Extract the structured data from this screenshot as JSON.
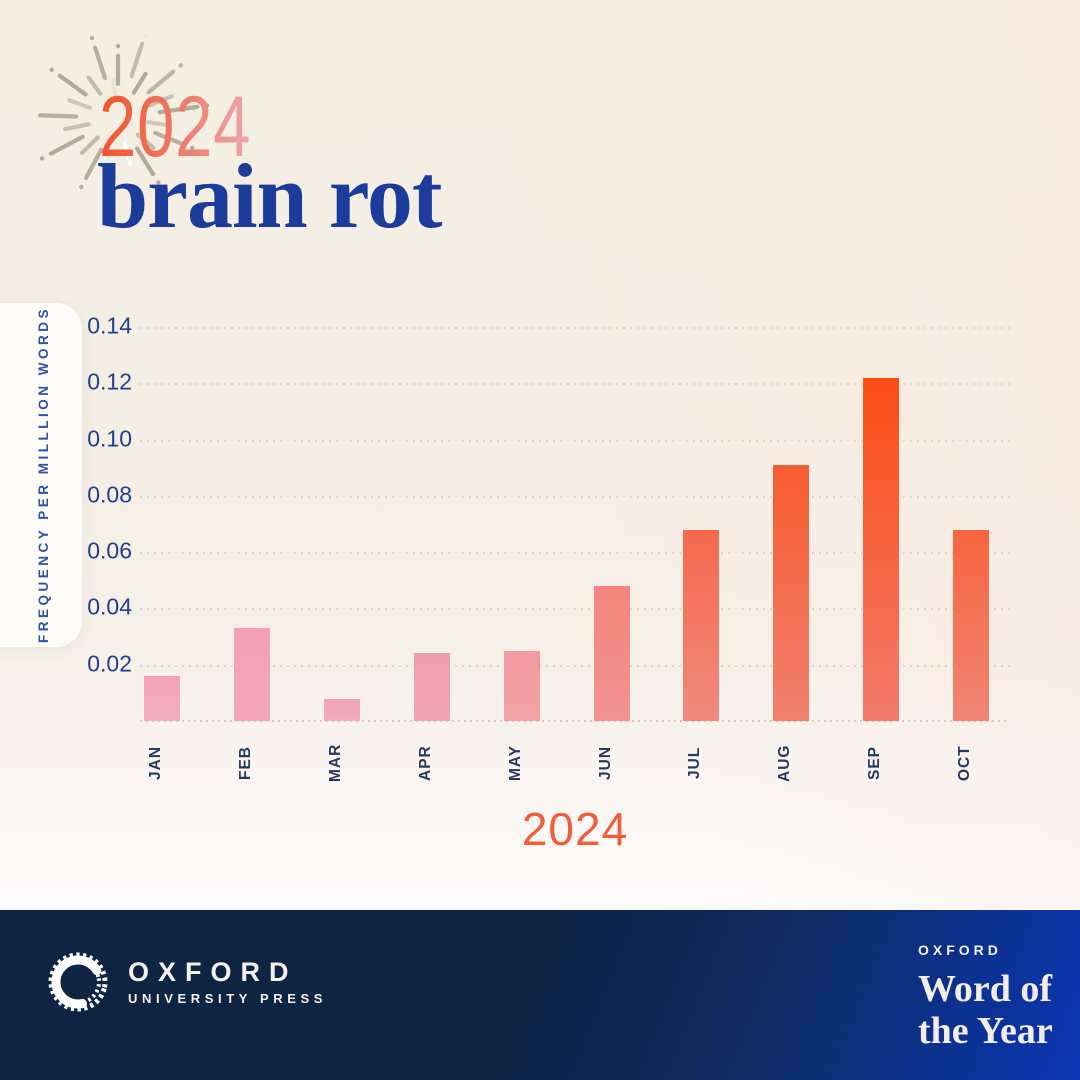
{
  "header": {
    "year": "2024",
    "word": "brain rot",
    "firework_icon": "starburst-icon"
  },
  "y_axis": {
    "label": "FREQUENCY PER MILLLION WORDS",
    "ticks": [
      "0.14",
      "0.12",
      "0.10",
      "0.08",
      "0.06",
      "0.04",
      "0.02"
    ]
  },
  "x_axis": {
    "title": "2024"
  },
  "chart_data": {
    "type": "bar",
    "title": "brain rot — usage frequency during 2024",
    "xlabel": "2024",
    "ylabel": "FREQUENCY PER MILLLION WORDS",
    "categories": [
      "JAN",
      "FEB",
      "MAR",
      "APR",
      "MAY",
      "JUN",
      "JUL",
      "AUG",
      "SEP",
      "OCT"
    ],
    "values": [
      0.016,
      0.033,
      0.008,
      0.024,
      0.025,
      0.048,
      0.068,
      0.091,
      0.122,
      0.068
    ],
    "ylim": [
      0,
      0.14
    ],
    "ytick_step": 0.02,
    "grid": "dotted-horizontal",
    "legend": "none",
    "bar_colors": [
      {
        "top": "#f3a4b9",
        "bottom": "#f3acbe"
      },
      {
        "top": "#f49fb3",
        "bottom": "#f3a7b9"
      },
      {
        "top": "#f3a4b7",
        "bottom": "#f3abbc"
      },
      {
        "top": "#f29daf",
        "bottom": "#f2a4b3"
      },
      {
        "top": "#f3999f",
        "bottom": "#f3a2a7"
      },
      {
        "top": "#f4857c",
        "bottom": "#f19390"
      },
      {
        "top": "#f6694e",
        "bottom": "#f08a7e"
      },
      {
        "top": "#f85c31",
        "bottom": "#f1806d"
      },
      {
        "top": "#fa4d15",
        "bottom": "#f37b6b"
      },
      {
        "top": "#f7653e",
        "bottom": "#f08575"
      }
    ]
  },
  "footer": {
    "publisher": {
      "logo": "oxford-university-press-emblem",
      "name": "OXFORD",
      "subname": "UNIVERSITY PRESS"
    },
    "brand": {
      "kicker": "OXFORD",
      "line1": "Word of",
      "line2": "the Year"
    }
  },
  "colors": {
    "title_gradient_start": "#f1552c",
    "title_gradient_end": "#eda6ad",
    "word_navy": "#1b3c9b",
    "axis_blue": "#2d52a8",
    "tick_blue": "#21408c",
    "month_navy": "#263a5e",
    "x_title_orange": "#ef5f3a",
    "footer_navy": "#0d2442",
    "footer_blue": "#0b36b4",
    "background_cream": "#f4efe3"
  }
}
